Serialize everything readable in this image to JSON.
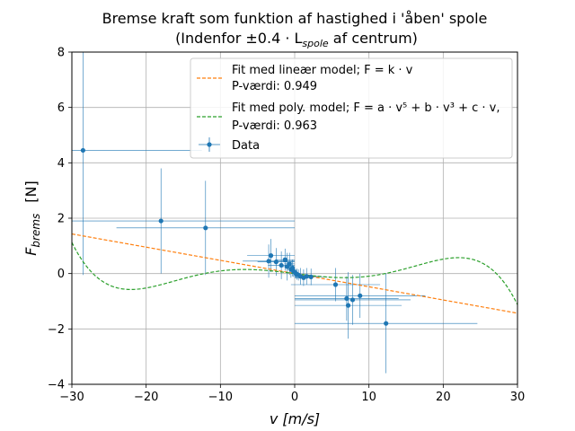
{
  "chart_data": {
    "type": "scatter",
    "title_line1": "Bremse kraft som funktion af hastighed i 'åben' spole",
    "title_line2_prefix": "(Indenfor ±0.4 · L",
    "title_line2_sub": "spole",
    "title_line2_suffix": " af centrum)",
    "xlabel": "v   [m/s]",
    "ylabel_main": "F",
    "ylabel_sub": "brems",
    "ylabel_unit": "[N]",
    "xlim": [
      -30,
      30
    ],
    "ylim": [
      -4,
      8
    ],
    "xticks": [
      -30,
      -20,
      -10,
      0,
      10,
      20,
      30
    ],
    "yticks": [
      -4,
      -2,
      0,
      2,
      4,
      6,
      8
    ],
    "xtick_labels": [
      "−30",
      "−20",
      "−10",
      "0",
      "10",
      "20",
      "30"
    ],
    "ytick_labels": [
      "−4",
      "−2",
      "0",
      "2",
      "4",
      "6",
      "8"
    ],
    "grid": true,
    "legend_position": "upper-right",
    "colors": {
      "data": "#1f77b4",
      "linear": "#ff7f0e",
      "poly": "#2ca02c",
      "grid": "#b0b0b0"
    },
    "linear_fit": {
      "label_line1": "Fit med lineær model; F = k · v",
      "label_line2": " P-værdi: 0.949",
      "k": -0.0477
    },
    "poly_fit": {
      "label_line1": "Fit med poly. model; F = a · v⁵ + b · v³ + c · v,",
      "label_line2": " P-værdi: 0.963",
      "a": -3.07e-07,
      "b": 0.000272,
      "c": -0.0336
    },
    "data_series": {
      "label": "Data",
      "points": [
        {
          "x": -28.5,
          "y": 4.45,
          "xerr": 16,
          "yerr": 4.5
        },
        {
          "x": -18.0,
          "y": 1.9,
          "xerr": 18,
          "yerr": 1.9
        },
        {
          "x": -12.0,
          "y": 1.65,
          "xerr": 12,
          "yerr": 1.7
        },
        {
          "x": -3.5,
          "y": 0.45,
          "xerr": 3.5,
          "yerr": 0.6
        },
        {
          "x": -3.2,
          "y": 0.65,
          "xerr": 3.2,
          "yerr": 0.6
        },
        {
          "x": -2.5,
          "y": 0.42,
          "xerr": 2.5,
          "yerr": 0.5
        },
        {
          "x": -1.8,
          "y": 0.3,
          "xerr": 1.8,
          "yerr": 0.5
        },
        {
          "x": -1.3,
          "y": 0.5,
          "xerr": 1.3,
          "yerr": 0.4
        },
        {
          "x": -1.0,
          "y": 0.25,
          "xerr": 1.0,
          "yerr": 0.5
        },
        {
          "x": -0.7,
          "y": 0.35,
          "xerr": 0.7,
          "yerr": 0.4
        },
        {
          "x": -0.5,
          "y": 0.15,
          "xerr": 0.5,
          "yerr": 0.3
        },
        {
          "x": -0.3,
          "y": 0.2,
          "xerr": 0.3,
          "yerr": 0.3
        },
        {
          "x": -0.15,
          "y": 0.08,
          "xerr": 0.2,
          "yerr": 0.2
        },
        {
          "x": 0.0,
          "y": 0.05,
          "xerr": 0.2,
          "yerr": 0.15
        },
        {
          "x": 0.15,
          "y": 0.0,
          "xerr": 0.2,
          "yerr": 0.15
        },
        {
          "x": 0.3,
          "y": -0.02,
          "xerr": 0.3,
          "yerr": 0.2
        },
        {
          "x": 0.5,
          "y": -0.05,
          "xerr": 0.5,
          "yerr": 0.2
        },
        {
          "x": 0.8,
          "y": -0.1,
          "xerr": 0.8,
          "yerr": 0.3
        },
        {
          "x": 1.2,
          "y": -0.15,
          "xerr": 1.2,
          "yerr": 0.3
        },
        {
          "x": 1.6,
          "y": -0.1,
          "xerr": 1.6,
          "yerr": 0.3
        },
        {
          "x": 2.2,
          "y": -0.12,
          "xerr": 2.2,
          "yerr": 0.3
        },
        {
          "x": 5.5,
          "y": -0.4,
          "xerr": 6,
          "yerr": 0.6
        },
        {
          "x": 7.0,
          "y": -0.9,
          "xerr": 7,
          "yerr": 0.8
        },
        {
          "x": 7.2,
          "y": -1.15,
          "xerr": 7.2,
          "yerr": 1.2
        },
        {
          "x": 7.8,
          "y": -0.95,
          "xerr": 7.8,
          "yerr": 0.9
        },
        {
          "x": 8.8,
          "y": -0.8,
          "xerr": 8.8,
          "yerr": 0.8
        },
        {
          "x": 12.3,
          "y": -1.8,
          "xerr": 12.3,
          "yerr": 1.8
        }
      ]
    }
  }
}
